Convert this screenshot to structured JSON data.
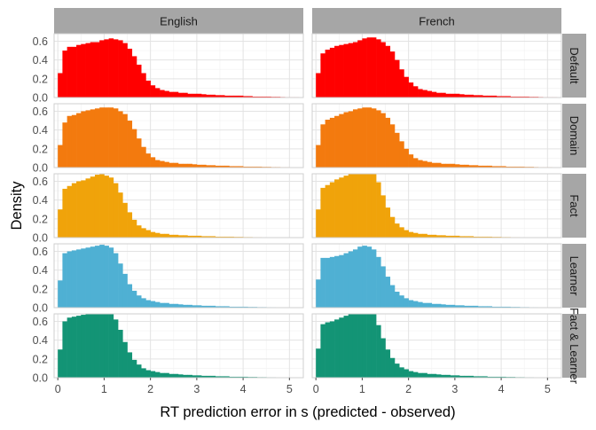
{
  "chart_data": {
    "type": "bar",
    "subtype": "faceted-histogram",
    "xlabel": "RT prediction error in s (predicted - observed)",
    "ylabel": "Density",
    "xlim": [
      -0.08,
      5.3
    ],
    "ylim": [
      0,
      0.68
    ],
    "x_ticks": [
      0,
      1,
      2,
      3,
      4,
      5
    ],
    "y_ticks": [
      0.0,
      0.2,
      0.4,
      0.6
    ],
    "y_tick_labels": [
      "0.0",
      "0.2",
      "0.4",
      "0.6"
    ],
    "bin_start": 0,
    "bin_width": 0.1,
    "grid": true,
    "legend": "none",
    "columns": [
      "English",
      "French"
    ],
    "rows": [
      {
        "name": "Default",
        "color": "#ff0000"
      },
      {
        "name": "Domain",
        "color": "#f37a0e"
      },
      {
        "name": "Fact",
        "color": "#f0a30a"
      },
      {
        "name": "Learner",
        "color": "#4fb0d3"
      },
      {
        "name": "Fact & Learner",
        "color": "#139475"
      }
    ],
    "panels": [
      {
        "row": "Default",
        "column": "English",
        "values": [
          0.26,
          0.5,
          0.54,
          0.54,
          0.56,
          0.57,
          0.58,
          0.59,
          0.59,
          0.61,
          0.62,
          0.63,
          0.62,
          0.61,
          0.58,
          0.52,
          0.44,
          0.35,
          0.26,
          0.18,
          0.13,
          0.1,
          0.08,
          0.07,
          0.06,
          0.06,
          0.05,
          0.05,
          0.04,
          0.04,
          0.04,
          0.035,
          0.03,
          0.03,
          0.025,
          0.025,
          0.02,
          0.02,
          0.02,
          0.02,
          0.015,
          0.015,
          0.01,
          0.01,
          0.01,
          0.01,
          0.008,
          0.008,
          0.006,
          0.005,
          0.005,
          0.005,
          0.004
        ]
      },
      {
        "row": "Default",
        "column": "French",
        "values": [
          0.26,
          0.47,
          0.51,
          0.53,
          0.55,
          0.56,
          0.57,
          0.58,
          0.59,
          0.61,
          0.63,
          0.64,
          0.64,
          0.62,
          0.59,
          0.55,
          0.49,
          0.4,
          0.3,
          0.22,
          0.16,
          0.12,
          0.09,
          0.08,
          0.07,
          0.06,
          0.05,
          0.05,
          0.04,
          0.04,
          0.04,
          0.035,
          0.03,
          0.03,
          0.025,
          0.025,
          0.02,
          0.02,
          0.02,
          0.015,
          0.015,
          0.015,
          0.01,
          0.01,
          0.01,
          0.01,
          0.008,
          0.008,
          0.006,
          0.005,
          0.005,
          0.005,
          0.004
        ]
      },
      {
        "row": "Domain",
        "column": "English",
        "values": [
          0.24,
          0.48,
          0.55,
          0.56,
          0.58,
          0.6,
          0.61,
          0.62,
          0.63,
          0.64,
          0.64,
          0.64,
          0.63,
          0.6,
          0.57,
          0.5,
          0.41,
          0.31,
          0.22,
          0.15,
          0.11,
          0.08,
          0.07,
          0.06,
          0.05,
          0.05,
          0.04,
          0.04,
          0.04,
          0.035,
          0.03,
          0.03,
          0.025,
          0.025,
          0.02,
          0.02,
          0.02,
          0.015,
          0.015,
          0.015,
          0.01,
          0.01,
          0.01,
          0.01,
          0.008,
          0.008,
          0.006,
          0.006,
          0.005,
          0.005,
          0.004,
          0.004,
          0.003
        ]
      },
      {
        "row": "Domain",
        "column": "French",
        "values": [
          0.24,
          0.46,
          0.51,
          0.53,
          0.55,
          0.57,
          0.59,
          0.6,
          0.62,
          0.63,
          0.64,
          0.64,
          0.63,
          0.61,
          0.58,
          0.53,
          0.46,
          0.37,
          0.28,
          0.2,
          0.14,
          0.1,
          0.08,
          0.07,
          0.06,
          0.05,
          0.05,
          0.04,
          0.04,
          0.04,
          0.035,
          0.03,
          0.03,
          0.025,
          0.025,
          0.02,
          0.02,
          0.02,
          0.015,
          0.015,
          0.015,
          0.01,
          0.01,
          0.01,
          0.01,
          0.008,
          0.008,
          0.006,
          0.005,
          0.005,
          0.005,
          0.004,
          0.003
        ]
      },
      {
        "row": "Fact",
        "column": "English",
        "values": [
          0.3,
          0.52,
          0.55,
          0.58,
          0.6,
          0.61,
          0.63,
          0.65,
          0.67,
          0.68,
          0.66,
          0.64,
          0.58,
          0.48,
          0.37,
          0.27,
          0.19,
          0.13,
          0.1,
          0.08,
          0.06,
          0.05,
          0.04,
          0.04,
          0.03,
          0.03,
          0.025,
          0.025,
          0.02,
          0.02,
          0.02,
          0.015,
          0.015,
          0.015,
          0.01,
          0.01,
          0.01,
          0.01,
          0.008,
          0.008,
          0.006,
          0.006,
          0.005,
          0.005,
          0.004,
          0.004,
          0.003,
          0.003,
          0.003,
          0.002,
          0.002,
          0.002,
          0.002
        ]
      },
      {
        "row": "Fact",
        "column": "French",
        "values": [
          0.3,
          0.53,
          0.56,
          0.59,
          0.62,
          0.64,
          0.66,
          0.69,
          0.71,
          0.74,
          0.75,
          0.74,
          0.7,
          0.59,
          0.45,
          0.32,
          0.22,
          0.15,
          0.11,
          0.08,
          0.06,
          0.05,
          0.04,
          0.04,
          0.03,
          0.03,
          0.025,
          0.025,
          0.02,
          0.02,
          0.02,
          0.015,
          0.015,
          0.015,
          0.01,
          0.01,
          0.01,
          0.01,
          0.008,
          0.008,
          0.006,
          0.006,
          0.005,
          0.005,
          0.004,
          0.004,
          0.003,
          0.003,
          0.003,
          0.002,
          0.002,
          0.002,
          0.002
        ]
      },
      {
        "row": "Learner",
        "column": "English",
        "values": [
          0.29,
          0.58,
          0.6,
          0.61,
          0.62,
          0.63,
          0.64,
          0.65,
          0.66,
          0.67,
          0.66,
          0.64,
          0.58,
          0.47,
          0.36,
          0.25,
          0.18,
          0.13,
          0.1,
          0.08,
          0.07,
          0.06,
          0.05,
          0.05,
          0.04,
          0.04,
          0.035,
          0.03,
          0.03,
          0.025,
          0.025,
          0.02,
          0.02,
          0.02,
          0.015,
          0.015,
          0.015,
          0.01,
          0.01,
          0.01,
          0.01,
          0.008,
          0.008,
          0.006,
          0.006,
          0.005,
          0.005,
          0.004,
          0.004,
          0.003,
          0.003,
          0.003,
          0.002
        ]
      },
      {
        "row": "Learner",
        "column": "French",
        "values": [
          0.3,
          0.53,
          0.53,
          0.54,
          0.55,
          0.56,
          0.58,
          0.6,
          0.62,
          0.65,
          0.66,
          0.65,
          0.62,
          0.54,
          0.44,
          0.33,
          0.24,
          0.17,
          0.13,
          0.1,
          0.08,
          0.07,
          0.06,
          0.05,
          0.05,
          0.04,
          0.04,
          0.035,
          0.03,
          0.03,
          0.025,
          0.025,
          0.02,
          0.02,
          0.02,
          0.015,
          0.015,
          0.015,
          0.01,
          0.01,
          0.01,
          0.01,
          0.008,
          0.008,
          0.006,
          0.006,
          0.005,
          0.005,
          0.004,
          0.004,
          0.003,
          0.003,
          0.002
        ]
      },
      {
        "row": "Fact & Learner",
        "column": "English",
        "values": [
          0.3,
          0.6,
          0.64,
          0.65,
          0.66,
          0.67,
          0.68,
          0.69,
          0.7,
          0.71,
          0.7,
          0.68,
          0.62,
          0.51,
          0.38,
          0.27,
          0.19,
          0.14,
          0.1,
          0.08,
          0.07,
          0.06,
          0.05,
          0.05,
          0.04,
          0.04,
          0.035,
          0.03,
          0.03,
          0.025,
          0.025,
          0.02,
          0.02,
          0.02,
          0.015,
          0.015,
          0.015,
          0.01,
          0.01,
          0.01,
          0.01,
          0.008,
          0.008,
          0.006,
          0.006,
          0.005,
          0.005,
          0.004,
          0.004,
          0.003,
          0.003,
          0.003,
          0.002
        ]
      },
      {
        "row": "Fact & Learner",
        "column": "French",
        "values": [
          0.31,
          0.57,
          0.59,
          0.6,
          0.62,
          0.64,
          0.66,
          0.68,
          0.71,
          0.73,
          0.75,
          0.73,
          0.68,
          0.56,
          0.42,
          0.3,
          0.21,
          0.15,
          0.11,
          0.09,
          0.07,
          0.06,
          0.05,
          0.05,
          0.04,
          0.04,
          0.035,
          0.03,
          0.03,
          0.025,
          0.025,
          0.02,
          0.02,
          0.02,
          0.015,
          0.015,
          0.015,
          0.01,
          0.01,
          0.01,
          0.01,
          0.008,
          0.008,
          0.006,
          0.006,
          0.005,
          0.005,
          0.004,
          0.004,
          0.003,
          0.003,
          0.003,
          0.002
        ]
      }
    ]
  }
}
